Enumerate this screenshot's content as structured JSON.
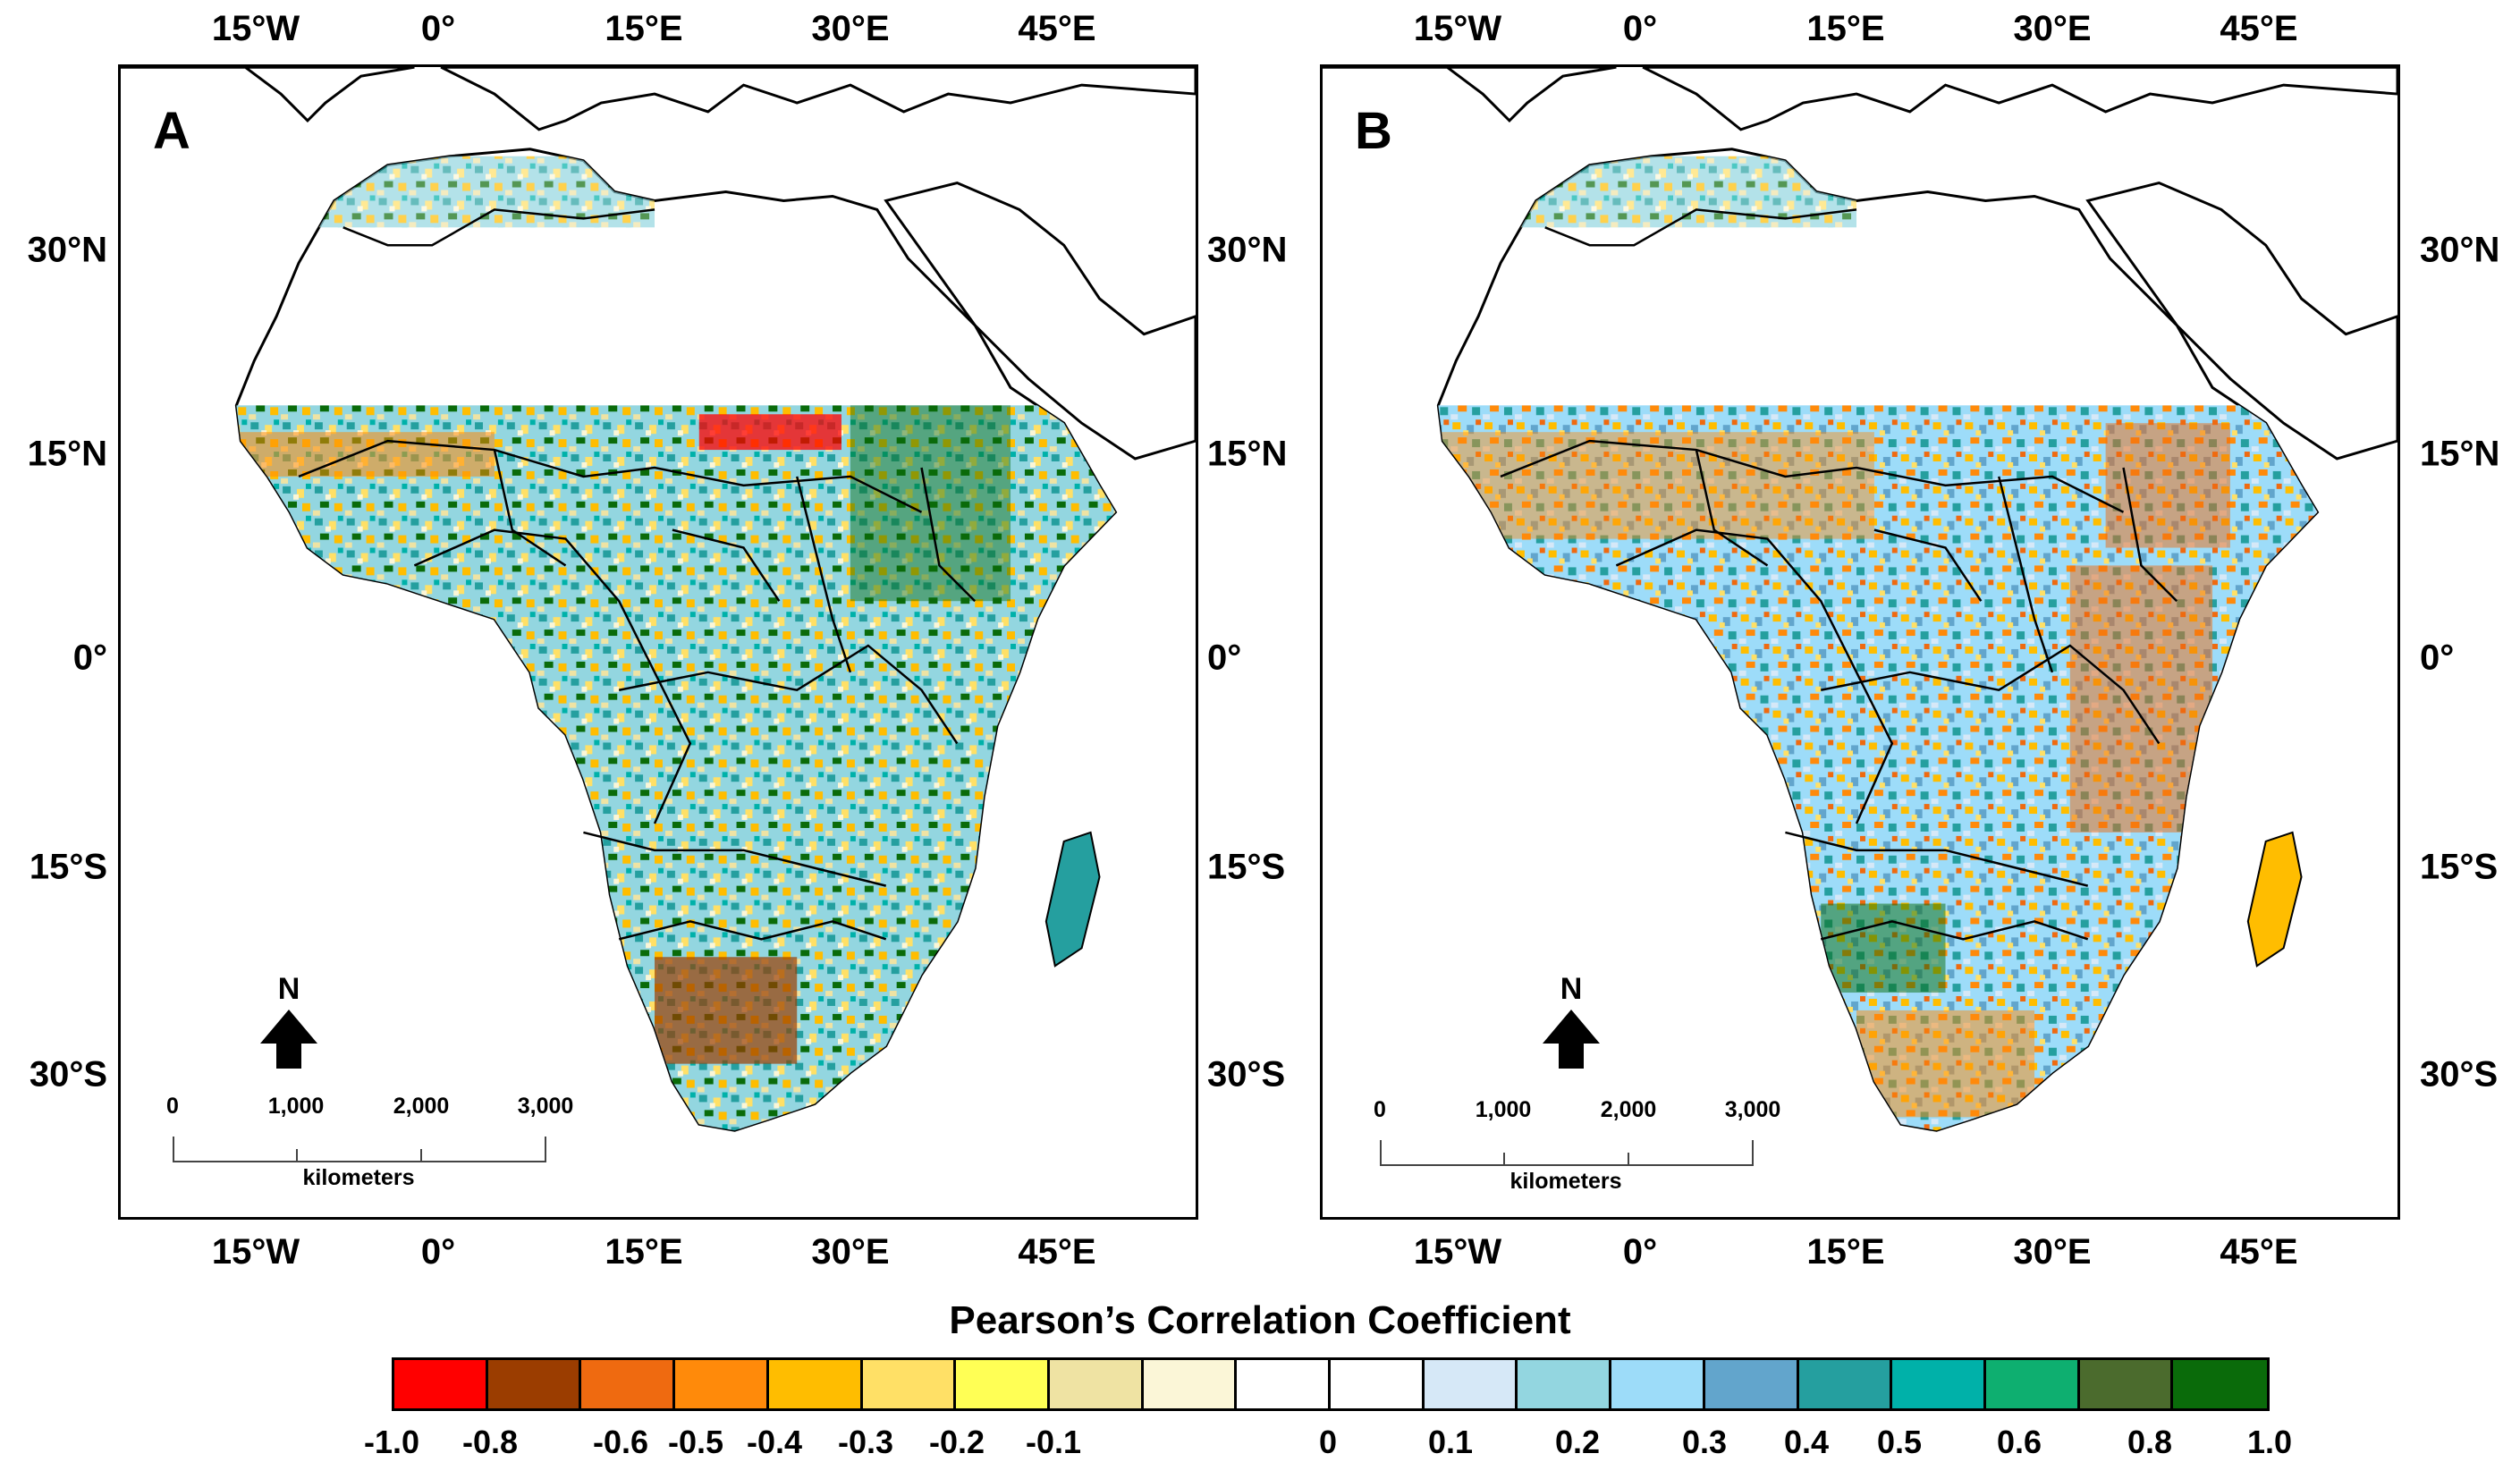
{
  "panels": [
    {
      "id": "A",
      "label": "A"
    },
    {
      "id": "B",
      "label": "B"
    }
  ],
  "axes": {
    "lon_labels": [
      "15°W",
      "0°",
      "15°E",
      "30°E",
      "45°E"
    ],
    "lat_labels": [
      "30°N",
      "15°N",
      "0°",
      "15°S",
      "30°S"
    ]
  },
  "north_arrow": {
    "label": "N"
  },
  "scale_bar": {
    "ticks": [
      "0",
      "1,000",
      "2,000",
      "3,000"
    ],
    "unit": "kilometers"
  },
  "legend": {
    "title": "Pearson’s Correlation Coefficient",
    "tick_labels": [
      "-1.0",
      "-0.8",
      "-0.6",
      "-0.5",
      "-0.4",
      "-0.3",
      "-0.2",
      "-0.1",
      "0",
      "0.1",
      "0.2",
      "0.3",
      "0.4",
      "0.5",
      "0.6",
      "0.8",
      "1.0"
    ],
    "colors": [
      "#ff0000",
      "#9b3d00",
      "#ef6a10",
      "#ff8a0a",
      "#ffbd00",
      "#ffe066",
      "#ffff55",
      "#efe3a3",
      "#fbf6d7",
      "#ffffff",
      "#ffffff",
      "#d6e8f7",
      "#93d6e0",
      "#9ddcf9",
      "#62a5cc",
      "#259f9f",
      "#00b1a9",
      "#0eaf70",
      "#4b6b2d",
      "#0a6b0a"
    ]
  },
  "colors": {
    "ocean": "#ffffff",
    "land_outline": "#000000",
    "nodata_land": "#ffffff"
  }
}
